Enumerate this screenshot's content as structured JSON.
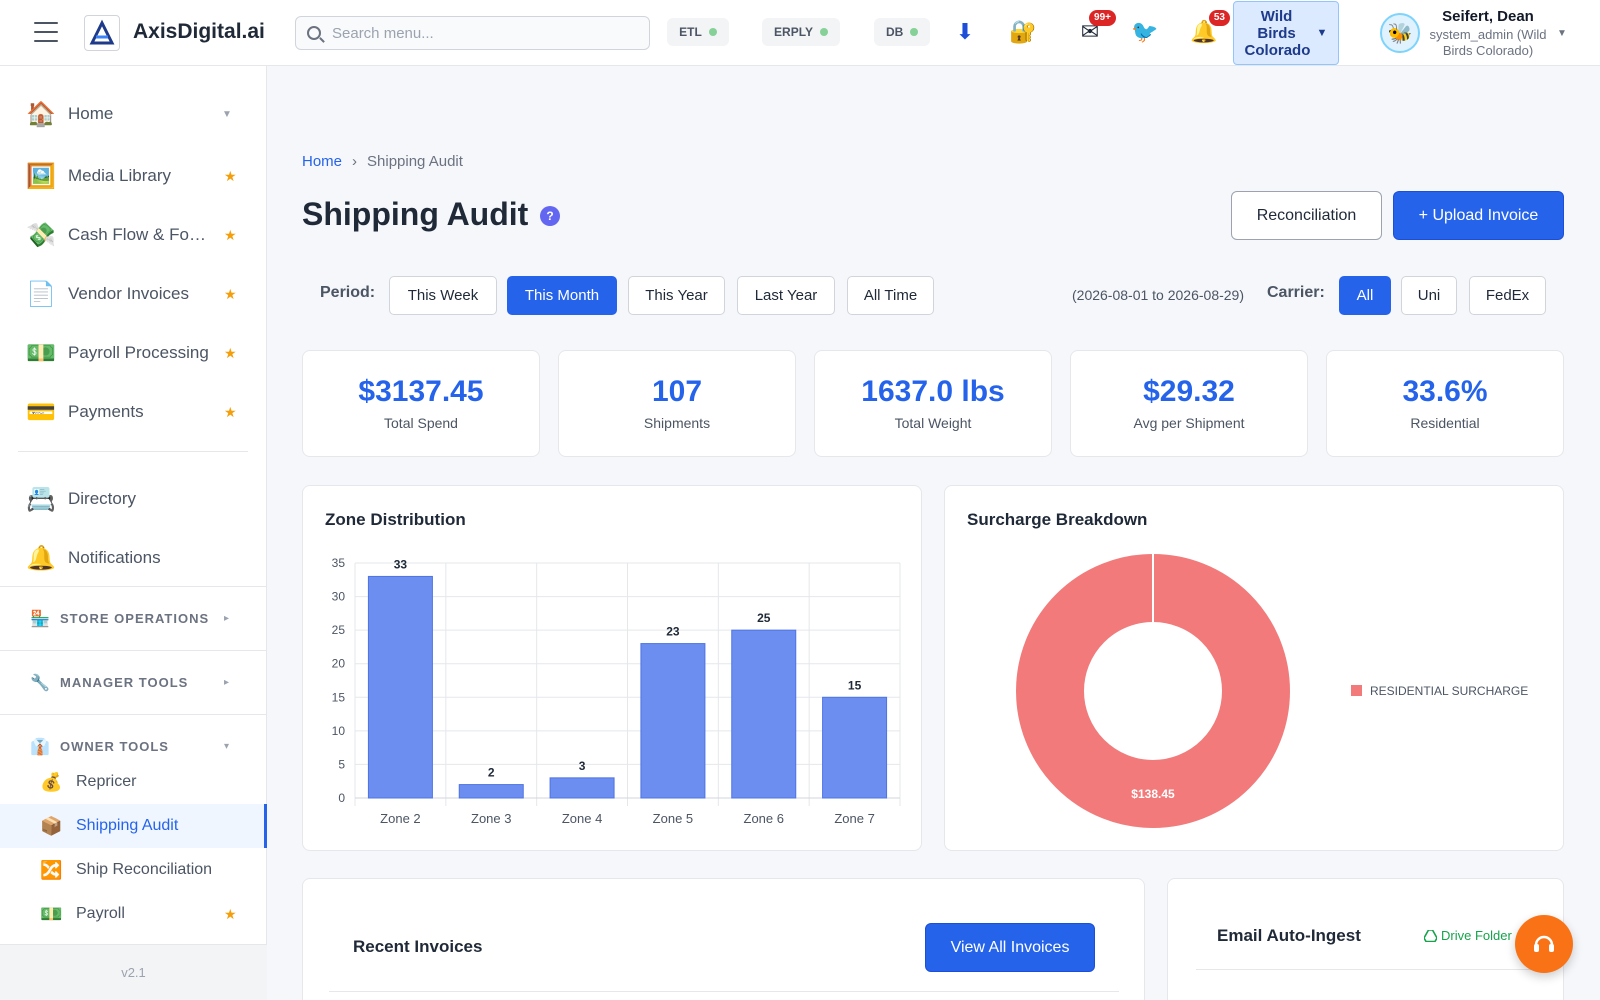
{
  "app": {
    "brand": "AxisDigital.ai",
    "search_placeholder": "Search menu...",
    "status": [
      {
        "label": "ETL",
        "color": "#86d198"
      },
      {
        "label": "ERPLY",
        "color": "#86d198"
      },
      {
        "label": "DB",
        "color": "#86d198"
      }
    ],
    "icons": {
      "download": "⬇",
      "lock": "🔐",
      "mail": "✉",
      "bird": "🐦",
      "bell": "🔔"
    },
    "mail_badge": "99+",
    "bell_badge": "53",
    "store": "Wild Birds Colorado",
    "user": {
      "name": "Seifert, Dean",
      "role": "system_admin (Wild Birds Colorado)"
    }
  },
  "sidebar": {
    "items": [
      {
        "label": "Home",
        "icon": "🏠",
        "marker": "caret"
      },
      {
        "label": "Media Library",
        "icon": "🖼️",
        "marker": "star"
      },
      {
        "label": "Cash Flow & Forecasting",
        "icon": "💸",
        "marker": "star"
      },
      {
        "label": "Vendor Invoices",
        "icon": "📄",
        "marker": "star"
      },
      {
        "label": "Payroll Processing",
        "icon": "💵",
        "marker": "star"
      },
      {
        "label": "Payments",
        "icon": "💳",
        "marker": "star"
      },
      {
        "label": "Directory",
        "icon": "📇",
        "marker": "none"
      },
      {
        "label": "Notifications",
        "icon": "🔔",
        "marker": "none"
      }
    ],
    "sections": [
      {
        "label": "STORE OPERATIONS",
        "icon": "🏪",
        "caret": "▸"
      },
      {
        "label": "MANAGER TOOLS",
        "icon": "🔧",
        "caret": "▸"
      },
      {
        "label": "OWNER TOOLS",
        "icon": "👔",
        "caret": "▾"
      }
    ],
    "owner_tools": [
      {
        "label": "Repricer",
        "icon": "💰",
        "star": false,
        "active": false
      },
      {
        "label": "Shipping Audit",
        "icon": "📦",
        "star": false,
        "active": true
      },
      {
        "label": "Ship Reconciliation",
        "icon": "🔀",
        "star": false,
        "active": false
      },
      {
        "label": "Payroll",
        "icon": "💵",
        "star": true,
        "active": false
      }
    ],
    "version": "v2.1"
  },
  "page": {
    "breadcrumb": {
      "home": "Home",
      "current": "Shipping Audit"
    },
    "title": "Shipping Audit",
    "help": "?",
    "reconciliation_label": "Reconciliation",
    "upload_label": "+ Upload Invoice",
    "period_label": "Period:",
    "periods": [
      "This Week",
      "This Month",
      "This Year",
      "Last Year",
      "All Time"
    ],
    "active_period": "This Month",
    "date_range": "(2026-08-01 to 2026-08-29)",
    "carrier_label": "Carrier:",
    "carriers": [
      "All",
      "Uni",
      "FedEx"
    ],
    "active_carrier": "All"
  },
  "stats": [
    {
      "value": "$3137.45",
      "label": "Total Spend"
    },
    {
      "value": "107",
      "label": "Shipments"
    },
    {
      "value": "1637.0 lbs",
      "label": "Total Weight"
    },
    {
      "value": "$29.32",
      "label": "Avg per Shipment"
    },
    {
      "value": "33.6%",
      "label": "Residential"
    }
  ],
  "zone_panel_title": "Zone Distribution",
  "surcharge_panel_title": "Surcharge Breakdown",
  "chart_data": [
    {
      "type": "bar",
      "title": "Zone Distribution",
      "categories": [
        "Zone 2",
        "Zone 3",
        "Zone 4",
        "Zone 5",
        "Zone 6",
        "Zone 7"
      ],
      "values": [
        33,
        2,
        3,
        23,
        25,
        15
      ],
      "ylim": [
        0,
        35
      ],
      "yticks": [
        0,
        5,
        10,
        15,
        20,
        25,
        30,
        35
      ],
      "grid": true,
      "color": "#6b8ef0"
    },
    {
      "type": "pie",
      "title": "Surcharge Breakdown",
      "donut": true,
      "slices": [
        {
          "label": "RESIDENTIAL SURCHARGE",
          "value": 138.45,
          "display": "$138.45",
          "color": "#f27a7a"
        }
      ],
      "legend": "right"
    }
  ],
  "recent": {
    "title": "Recent Invoices",
    "view_all": "View All Invoices"
  },
  "email": {
    "title": "Email Auto-Ingest",
    "drive_link": "Drive Folder"
  }
}
